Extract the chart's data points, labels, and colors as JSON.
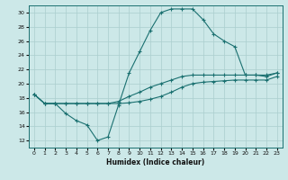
{
  "xlabel": "Humidex (Indice chaleur)",
  "bg_color": "#cce8e8",
  "grid_color": "#aacece",
  "line_color": "#1a7070",
  "xlim": [
    -0.5,
    23.5
  ],
  "ylim": [
    11,
    31
  ],
  "xticks": [
    0,
    1,
    2,
    3,
    4,
    5,
    6,
    7,
    8,
    9,
    10,
    11,
    12,
    13,
    14,
    15,
    16,
    17,
    18,
    19,
    20,
    21,
    22,
    23
  ],
  "yticks": [
    12,
    14,
    16,
    18,
    20,
    22,
    24,
    26,
    28,
    30
  ],
  "line1_x": [
    0,
    1,
    2,
    3,
    4,
    5,
    6,
    7,
    8,
    9,
    10,
    11,
    12,
    13,
    14,
    15,
    16,
    17,
    18,
    19,
    20,
    21,
    22,
    23
  ],
  "line1_y": [
    18.5,
    17.2,
    17.2,
    15.8,
    14.8,
    14.2,
    12.0,
    12.5,
    17.0,
    21.5,
    24.5,
    27.5,
    30.0,
    30.5,
    30.5,
    30.5,
    29.0,
    27.0,
    26.0,
    25.2,
    21.2,
    21.2,
    21.0,
    21.5
  ],
  "line2_x": [
    0,
    1,
    2,
    3,
    4,
    5,
    6,
    7,
    8,
    9,
    10,
    11,
    12,
    13,
    14,
    15,
    16,
    17,
    18,
    19,
    20,
    21,
    22,
    23
  ],
  "line2_y": [
    18.5,
    17.2,
    17.2,
    17.2,
    17.2,
    17.2,
    17.2,
    17.2,
    17.5,
    18.2,
    18.8,
    19.5,
    20.0,
    20.5,
    21.0,
    21.2,
    21.2,
    21.2,
    21.2,
    21.2,
    21.2,
    21.2,
    21.2,
    21.5
  ],
  "line3_x": [
    0,
    1,
    2,
    3,
    4,
    5,
    6,
    7,
    8,
    9,
    10,
    11,
    12,
    13,
    14,
    15,
    16,
    17,
    18,
    19,
    20,
    21,
    22,
    23
  ],
  "line3_y": [
    18.5,
    17.2,
    17.2,
    17.2,
    17.2,
    17.2,
    17.2,
    17.2,
    17.2,
    17.3,
    17.5,
    17.8,
    18.2,
    18.8,
    19.5,
    20.0,
    20.2,
    20.3,
    20.4,
    20.5,
    20.5,
    20.5,
    20.5,
    21.0
  ]
}
